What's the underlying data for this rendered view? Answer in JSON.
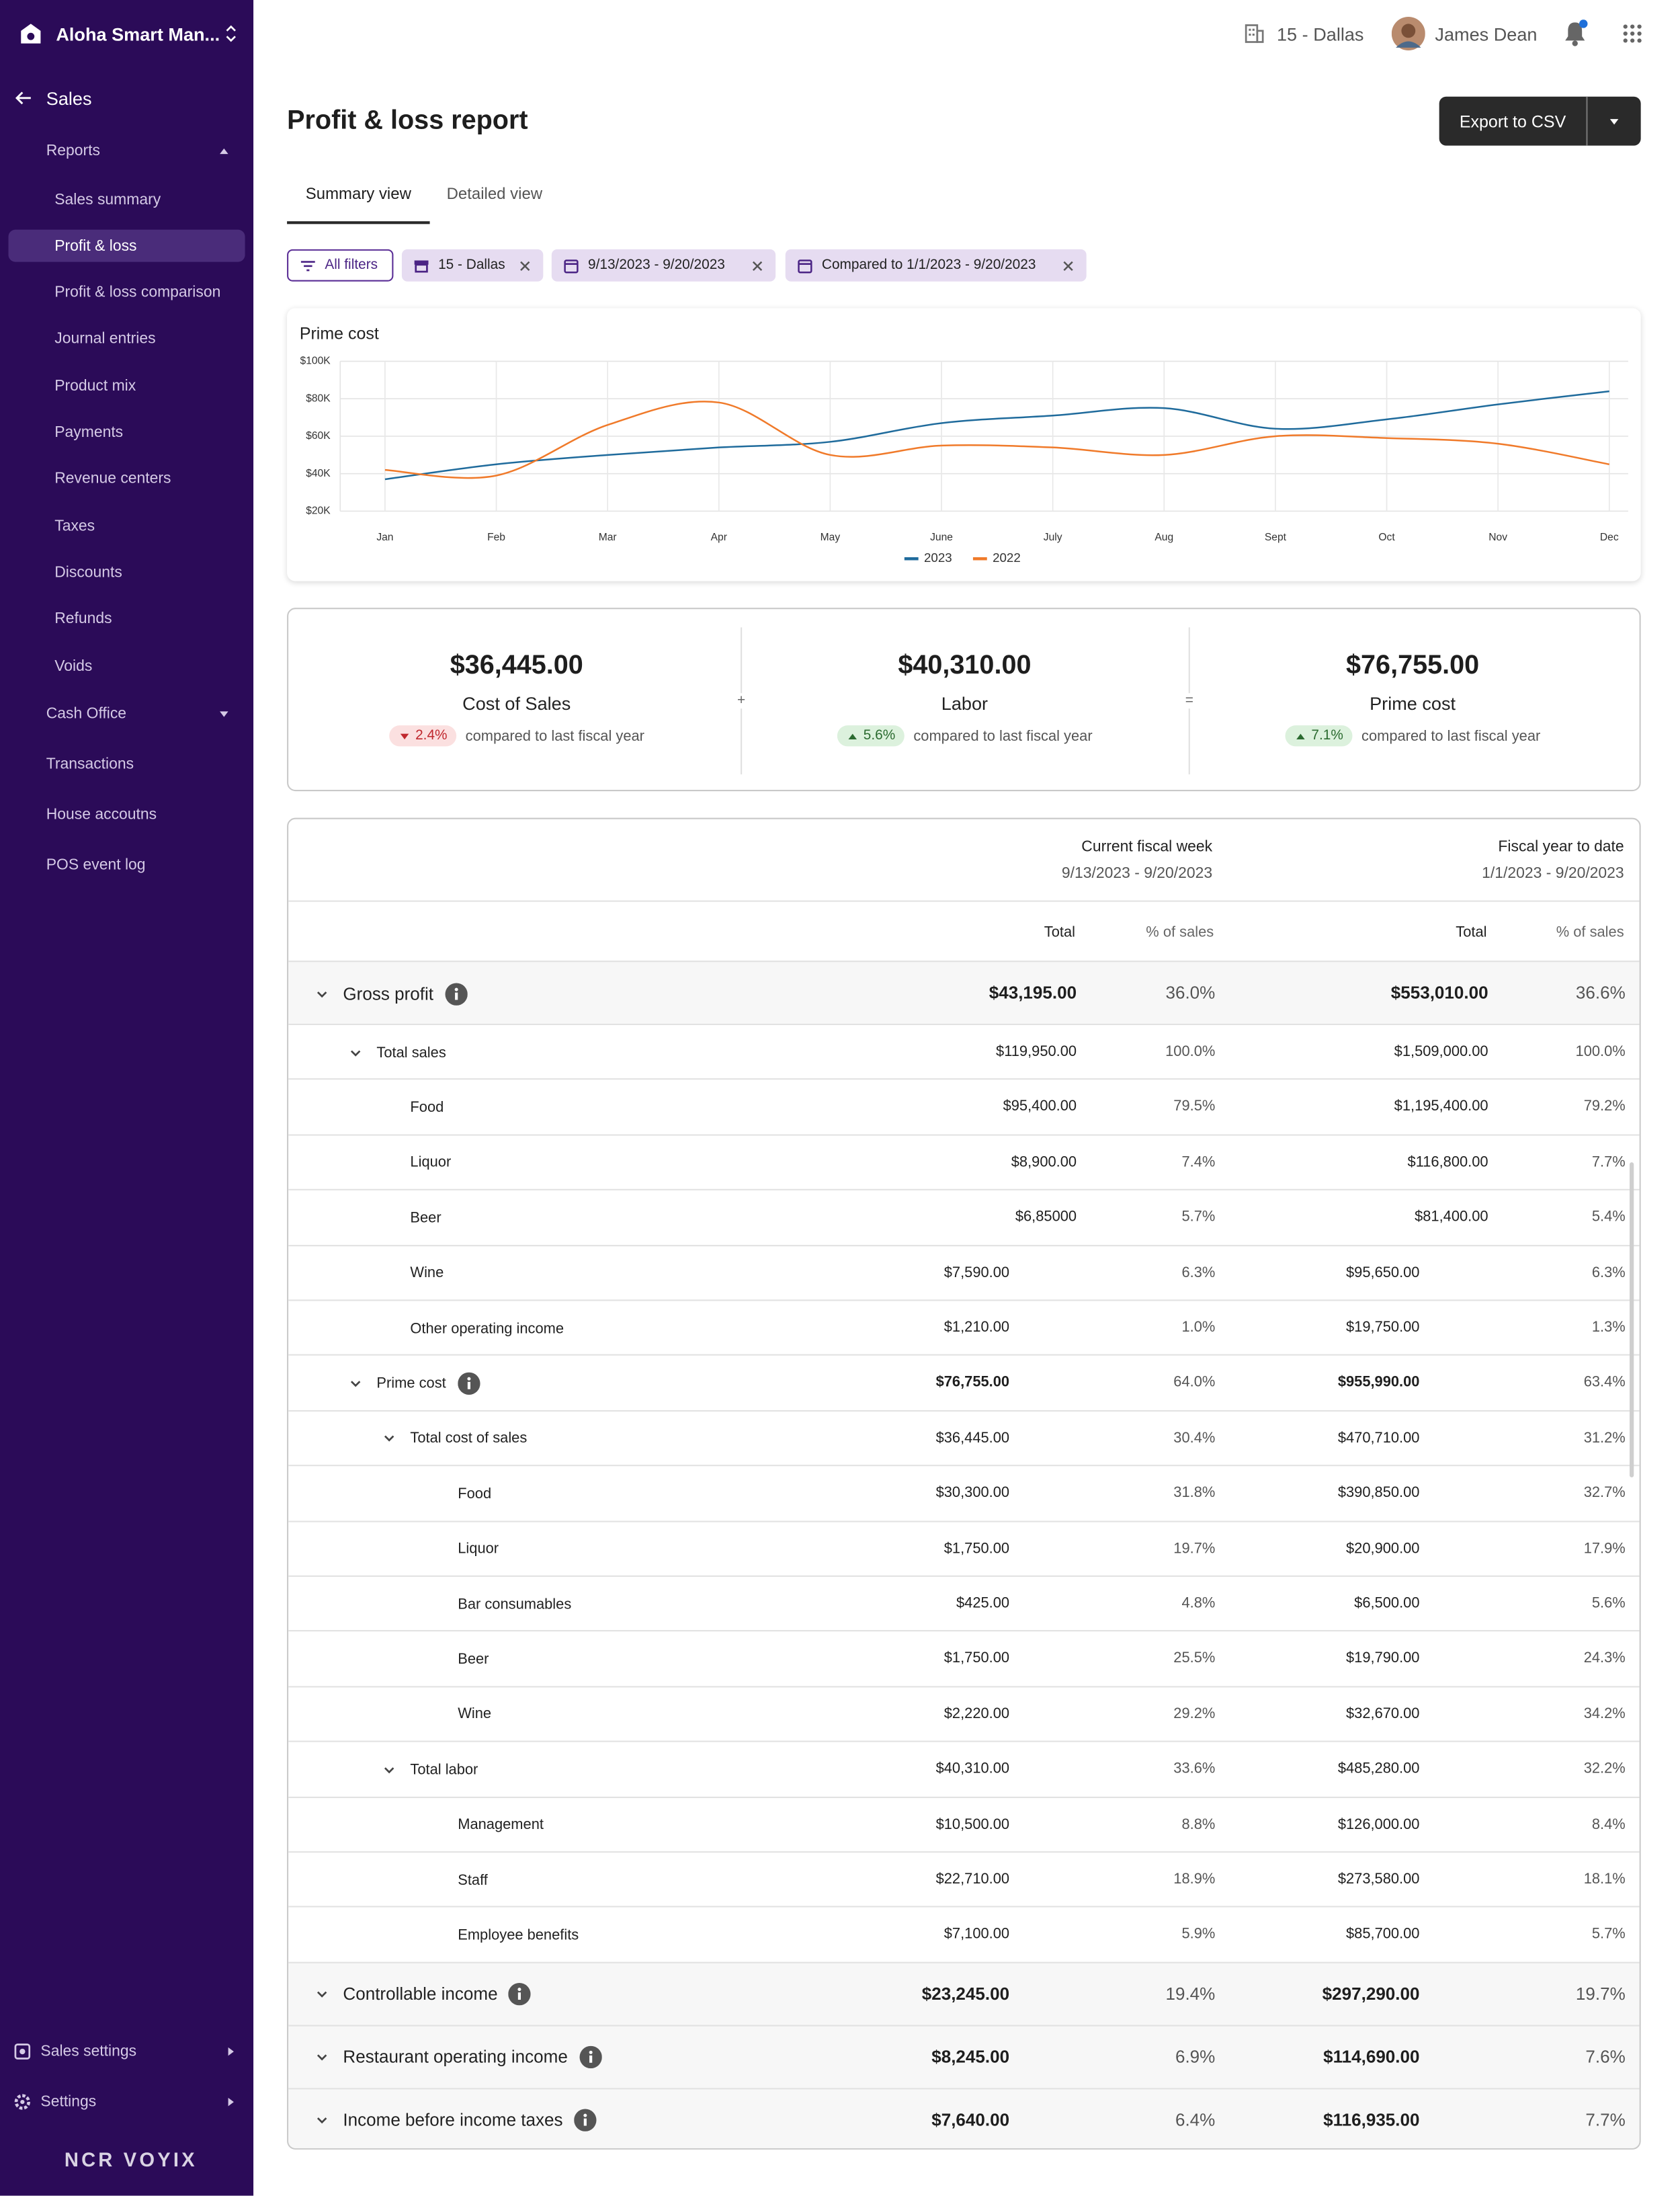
{
  "sidebar": {
    "app_name": "Aloha Smart Man...",
    "section": "Sales",
    "nav": [
      {
        "label": "Reports",
        "expanded": true,
        "active_child": 1,
        "children": [
          "Sales summary",
          "Profit & loss",
          "Profit & loss comparison",
          "Journal entries",
          "Product mix",
          "Payments",
          "Revenue centers",
          "Taxes",
          "Discounts",
          "Refunds",
          "Voids"
        ]
      },
      {
        "label": "Cash Office",
        "expanded": false,
        "children": []
      },
      {
        "label": "Transactions"
      },
      {
        "label": "House accoutns"
      },
      {
        "label": "POS event log"
      }
    ],
    "footer_items": [
      "Sales settings",
      "Settings"
    ],
    "logo": "NCR VOYIX"
  },
  "header": {
    "location": "15 - Dallas",
    "user": "James Dean"
  },
  "page": {
    "title": "Profit & loss report",
    "export_button": "Export to CSV",
    "tabs": [
      "Summary view",
      "Detailed view"
    ],
    "active_tab": 0,
    "filters": [
      "All filters",
      "15 - Dallas",
      "9/13/2023 - 9/20/2023",
      "Compared to 1/1/2023 - 9/20/2023"
    ]
  },
  "chart": {
    "type": "line",
    "title": "Prime cost",
    "categories": [
      "Jan",
      "Feb",
      "Mar",
      "Apr",
      "May",
      "June",
      "July",
      "Aug",
      "Sept",
      "Oct",
      "Nov",
      "Dec"
    ],
    "series": [
      {
        "name": "2023",
        "color": "#1f6b9c",
        "values": [
          37000,
          45000,
          50000,
          54000,
          57000,
          67000,
          71000,
          75000,
          64000,
          69000,
          77000,
          84000
        ]
      },
      {
        "name": "2022",
        "color": "#f07a2a",
        "values": [
          42000,
          39000,
          66000,
          78000,
          50000,
          55000,
          54000,
          50000,
          60000,
          59000,
          56000,
          45000
        ]
      }
    ],
    "ylim": [
      20000,
      100000
    ],
    "yticks": [
      {
        "value": 20000,
        "label": "$20K"
      },
      {
        "value": 40000,
        "label": "$40K"
      },
      {
        "value": 60000,
        "label": "$60K"
      },
      {
        "value": 80000,
        "label": "$80K"
      },
      {
        "value": 100000,
        "label": "$100K"
      }
    ],
    "grid": true,
    "legend": "bottom"
  },
  "summary": {
    "cards": [
      {
        "value": "$36,445.00",
        "label": "Cost of Sales",
        "change": "2.4%",
        "trend": "down",
        "note": "compared to last fiscal year"
      },
      {
        "value": "$40,310.00",
        "label": "Labor",
        "change": "5.6%",
        "trend": "up",
        "note": "compared to last fiscal year"
      },
      {
        "value": "$76,755.00",
        "label": "Prime cost",
        "change": "7.1%",
        "trend": "up",
        "note": "compared to last fiscal year"
      }
    ],
    "operators": [
      "+",
      "="
    ]
  },
  "table": {
    "groups": [
      {
        "title": "Current fiscal week",
        "range": "9/13/2023 - 9/20/2023"
      },
      {
        "title": "Fiscal year to date",
        "range": "1/1/2023 - 9/20/2023"
      }
    ],
    "columns": [
      "Total",
      "% of sales",
      "Total",
      "% of sales"
    ],
    "rows": [
      {
        "label": "Gross profit",
        "level": 0,
        "expandable": true,
        "info": true,
        "cells": [
          "$43,195.00",
          "36.0%",
          "$553,010.00",
          "36.6%"
        ]
      },
      {
        "label": "Total sales",
        "level": 1,
        "expandable": true,
        "cells": [
          "$119,950.00",
          "100.0%",
          "$1,509,000.00",
          "100.0%"
        ]
      },
      {
        "label": "Food",
        "level": 2,
        "cells": [
          "$95,400.00",
          "79.5%",
          "$1,195,400.00",
          "79.2%"
        ]
      },
      {
        "label": "Liquor",
        "level": 2,
        "cells": [
          "$8,900.00",
          "7.4%",
          "$116,800.00",
          "7.7%"
        ]
      },
      {
        "label": "Beer",
        "level": 2,
        "cells": [
          "$6,85000",
          "5.7%",
          "$81,400.00",
          "5.4%"
        ]
      },
      {
        "label": "Wine",
        "level": 2,
        "cells": [
          "$7,590.00",
          "6.3%",
          "$95,650.00",
          "6.3%"
        ]
      },
      {
        "label": "Other operating income",
        "level": 2,
        "cells": [
          "$1,210.00",
          "1.0%",
          "$19,750.00",
          "1.3%"
        ]
      },
      {
        "label": "Prime cost",
        "level": 1,
        "expandable": true,
        "info": true,
        "bold": true,
        "cells": [
          "$76,755.00",
          "64.0%",
          "$955,990.00",
          "63.4%"
        ]
      },
      {
        "label": "Total cost of sales",
        "level": 2,
        "expandable": true,
        "cells": [
          "$36,445.00",
          "30.4%",
          "$470,710.00",
          "31.2%"
        ]
      },
      {
        "label": "Food",
        "level": 3,
        "cells": [
          "$30,300.00",
          "31.8%",
          "$390,850.00",
          "32.7%"
        ]
      },
      {
        "label": "Liquor",
        "level": 3,
        "cells": [
          "$1,750.00",
          "19.7%",
          "$20,900.00",
          "17.9%"
        ]
      },
      {
        "label": "Bar consumables",
        "level": 3,
        "cells": [
          "$425.00",
          "4.8%",
          "$6,500.00",
          "5.6%"
        ]
      },
      {
        "label": "Beer",
        "level": 3,
        "cells": [
          "$1,750.00",
          "25.5%",
          "$19,790.00",
          "24.3%"
        ]
      },
      {
        "label": "Wine",
        "level": 3,
        "cells": [
          "$2,220.00",
          "29.2%",
          "$32,670.00",
          "34.2%"
        ]
      },
      {
        "label": "Total labor",
        "level": 2,
        "expandable": true,
        "cells": [
          "$40,310.00",
          "33.6%",
          "$485,280.00",
          "32.2%"
        ]
      },
      {
        "label": "Management",
        "level": 3,
        "cells": [
          "$10,500.00",
          "8.8%",
          "$126,000.00",
          "8.4%"
        ]
      },
      {
        "label": "Staff",
        "level": 3,
        "cells": [
          "$22,710.00",
          "18.9%",
          "$273,580.00",
          "18.1%"
        ]
      },
      {
        "label": "Employee benefits",
        "level": 3,
        "cells": [
          "$7,100.00",
          "5.9%",
          "$85,700.00",
          "5.7%"
        ]
      },
      {
        "label": "Controllable income",
        "level": 0,
        "expandable": true,
        "info": true,
        "cells": [
          "$23,245.00",
          "19.4%",
          "$297,290.00",
          "19.7%"
        ]
      },
      {
        "label": "Restaurant operating income",
        "level": 0,
        "expandable": true,
        "info": true,
        "cells": [
          "$8,245.00",
          "6.9%",
          "$114,690.00",
          "7.6%"
        ]
      },
      {
        "label": "Income before income taxes",
        "level": 0,
        "expandable": true,
        "info": true,
        "cells": [
          "$7,640.00",
          "6.4%",
          "$116,935.00",
          "7.7%"
        ]
      }
    ]
  }
}
